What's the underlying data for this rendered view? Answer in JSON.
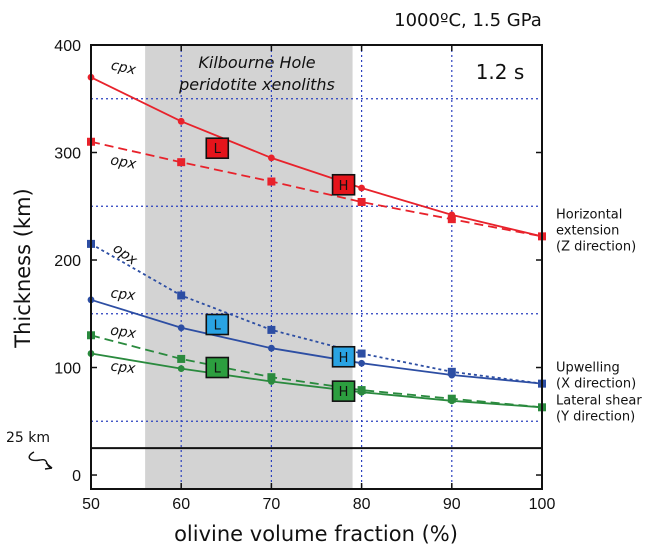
{
  "chart_data": {
    "type": "line",
    "conditions": "1000ºC, 1.5 GPa",
    "time": "1.2 s",
    "xlabel": "olivine volume fraction (%)",
    "ylabel": "Thickness (km)",
    "xlim": [
      50,
      100
    ],
    "ylim": [
      -13,
      400
    ],
    "x_ticks": [
      50,
      60,
      70,
      80,
      90,
      100
    ],
    "y_ticks": [
      0,
      100,
      200,
      300,
      400
    ],
    "grid": "dotted blue at x=60,70,80,90 and y=50,150,250,350",
    "shaded_region": {
      "label": "Kilbourne Hole peridotite xenoliths",
      "x_range": [
        56,
        79
      ]
    },
    "reference_line": {
      "label": "25 km",
      "y": 25
    },
    "colors": {
      "red": "#e8222b",
      "blue": "#2d4ea3",
      "green": "#2a8a3e",
      "shade": "#d3d3d3",
      "grid": "#2a3fbf",
      "L_red": "#e5141b",
      "L_blue": "#29a3e3",
      "L_green": "#2c9e3f"
    },
    "series": [
      {
        "name": "cpx",
        "group": "Horizontal extension",
        "color": "#e8222b",
        "style": "solid",
        "marker": "circle",
        "x": [
          50,
          60,
          70,
          80,
          90,
          100
        ],
        "y": [
          370,
          329,
          295,
          267,
          242,
          222
        ]
      },
      {
        "name": "opx",
        "group": "Horizontal extension",
        "color": "#e8222b",
        "style": "dashed",
        "marker": "square",
        "x": [
          50,
          60,
          70,
          80,
          90,
          100
        ],
        "y": [
          310,
          291,
          273,
          254,
          238,
          222
        ]
      },
      {
        "name": "opx",
        "group": "Upwelling",
        "color": "#2d4ea3",
        "style": "dotted",
        "marker": "square",
        "x": [
          50,
          60,
          70,
          80,
          90,
          100
        ],
        "y": [
          215,
          167,
          135,
          113,
          96,
          85
        ]
      },
      {
        "name": "cpx",
        "group": "Upwelling",
        "color": "#2d4ea3",
        "style": "solid",
        "marker": "circle",
        "x": [
          50,
          60,
          70,
          80,
          90,
          100
        ],
        "y": [
          163,
          137,
          118,
          104,
          93,
          85
        ]
      },
      {
        "name": "opx",
        "group": "Lateral shear",
        "color": "#2a8a3e",
        "style": "dashed",
        "marker": "square",
        "x": [
          50,
          60,
          70,
          80,
          90,
          100
        ],
        "y": [
          130,
          108,
          91,
          79,
          71,
          63
        ]
      },
      {
        "name": "cpx",
        "group": "Lateral shear",
        "color": "#2a8a3e",
        "style": "solid",
        "marker": "circle",
        "x": [
          50,
          60,
          70,
          80,
          90,
          100
        ],
        "y": [
          113,
          99,
          87,
          77,
          69,
          63
        ]
      }
    ],
    "group_labels": [
      {
        "line1": "Horizontal",
        "line2": "extension",
        "line3": "(Z direction)",
        "y": 222,
        "color": "#e8222b"
      },
      {
        "line1": "Upwelling",
        "line2": "(X direction)",
        "y": 85,
        "color": "#2d4ea3"
      },
      {
        "line1": "Lateral shear",
        "line2": "(Y direction)",
        "y": 62,
        "color": "#2a8a3e"
      }
    ],
    "markers": [
      {
        "text": "L",
        "x": 64,
        "y": 304,
        "fill": "#e5141b",
        "textcolor": "#111"
      },
      {
        "text": "H",
        "x": 78,
        "y": 270,
        "fill": "#e5141b",
        "textcolor": "#111"
      },
      {
        "text": "L",
        "x": 64,
        "y": 140,
        "fill": "#29a3e3",
        "textcolor": "#111"
      },
      {
        "text": "H",
        "x": 78,
        "y": 110,
        "fill": "#29a3e3",
        "textcolor": "#111"
      },
      {
        "text": "L",
        "x": 64,
        "y": 100,
        "fill": "#2c9e3f",
        "textcolor": "#111"
      },
      {
        "text": "H",
        "x": 78,
        "y": 78,
        "fill": "#2c9e3f",
        "textcolor": "#111"
      }
    ],
    "curve_labels": [
      {
        "text": "cpx",
        "x": 53.5,
        "y": 375,
        "rot": 12
      },
      {
        "text": "opx",
        "x": 53.5,
        "y": 287,
        "rot": 10
      },
      {
        "text": "opx",
        "x": 53.5,
        "y": 202,
        "rot": 36
      },
      {
        "text": "cpx",
        "x": 53.5,
        "y": 164,
        "rot": 6
      },
      {
        "text": "opx",
        "x": 53.5,
        "y": 129,
        "rot": 8
      },
      {
        "text": "cpx",
        "x": 53.5,
        "y": 96,
        "rot": 6
      }
    ]
  }
}
